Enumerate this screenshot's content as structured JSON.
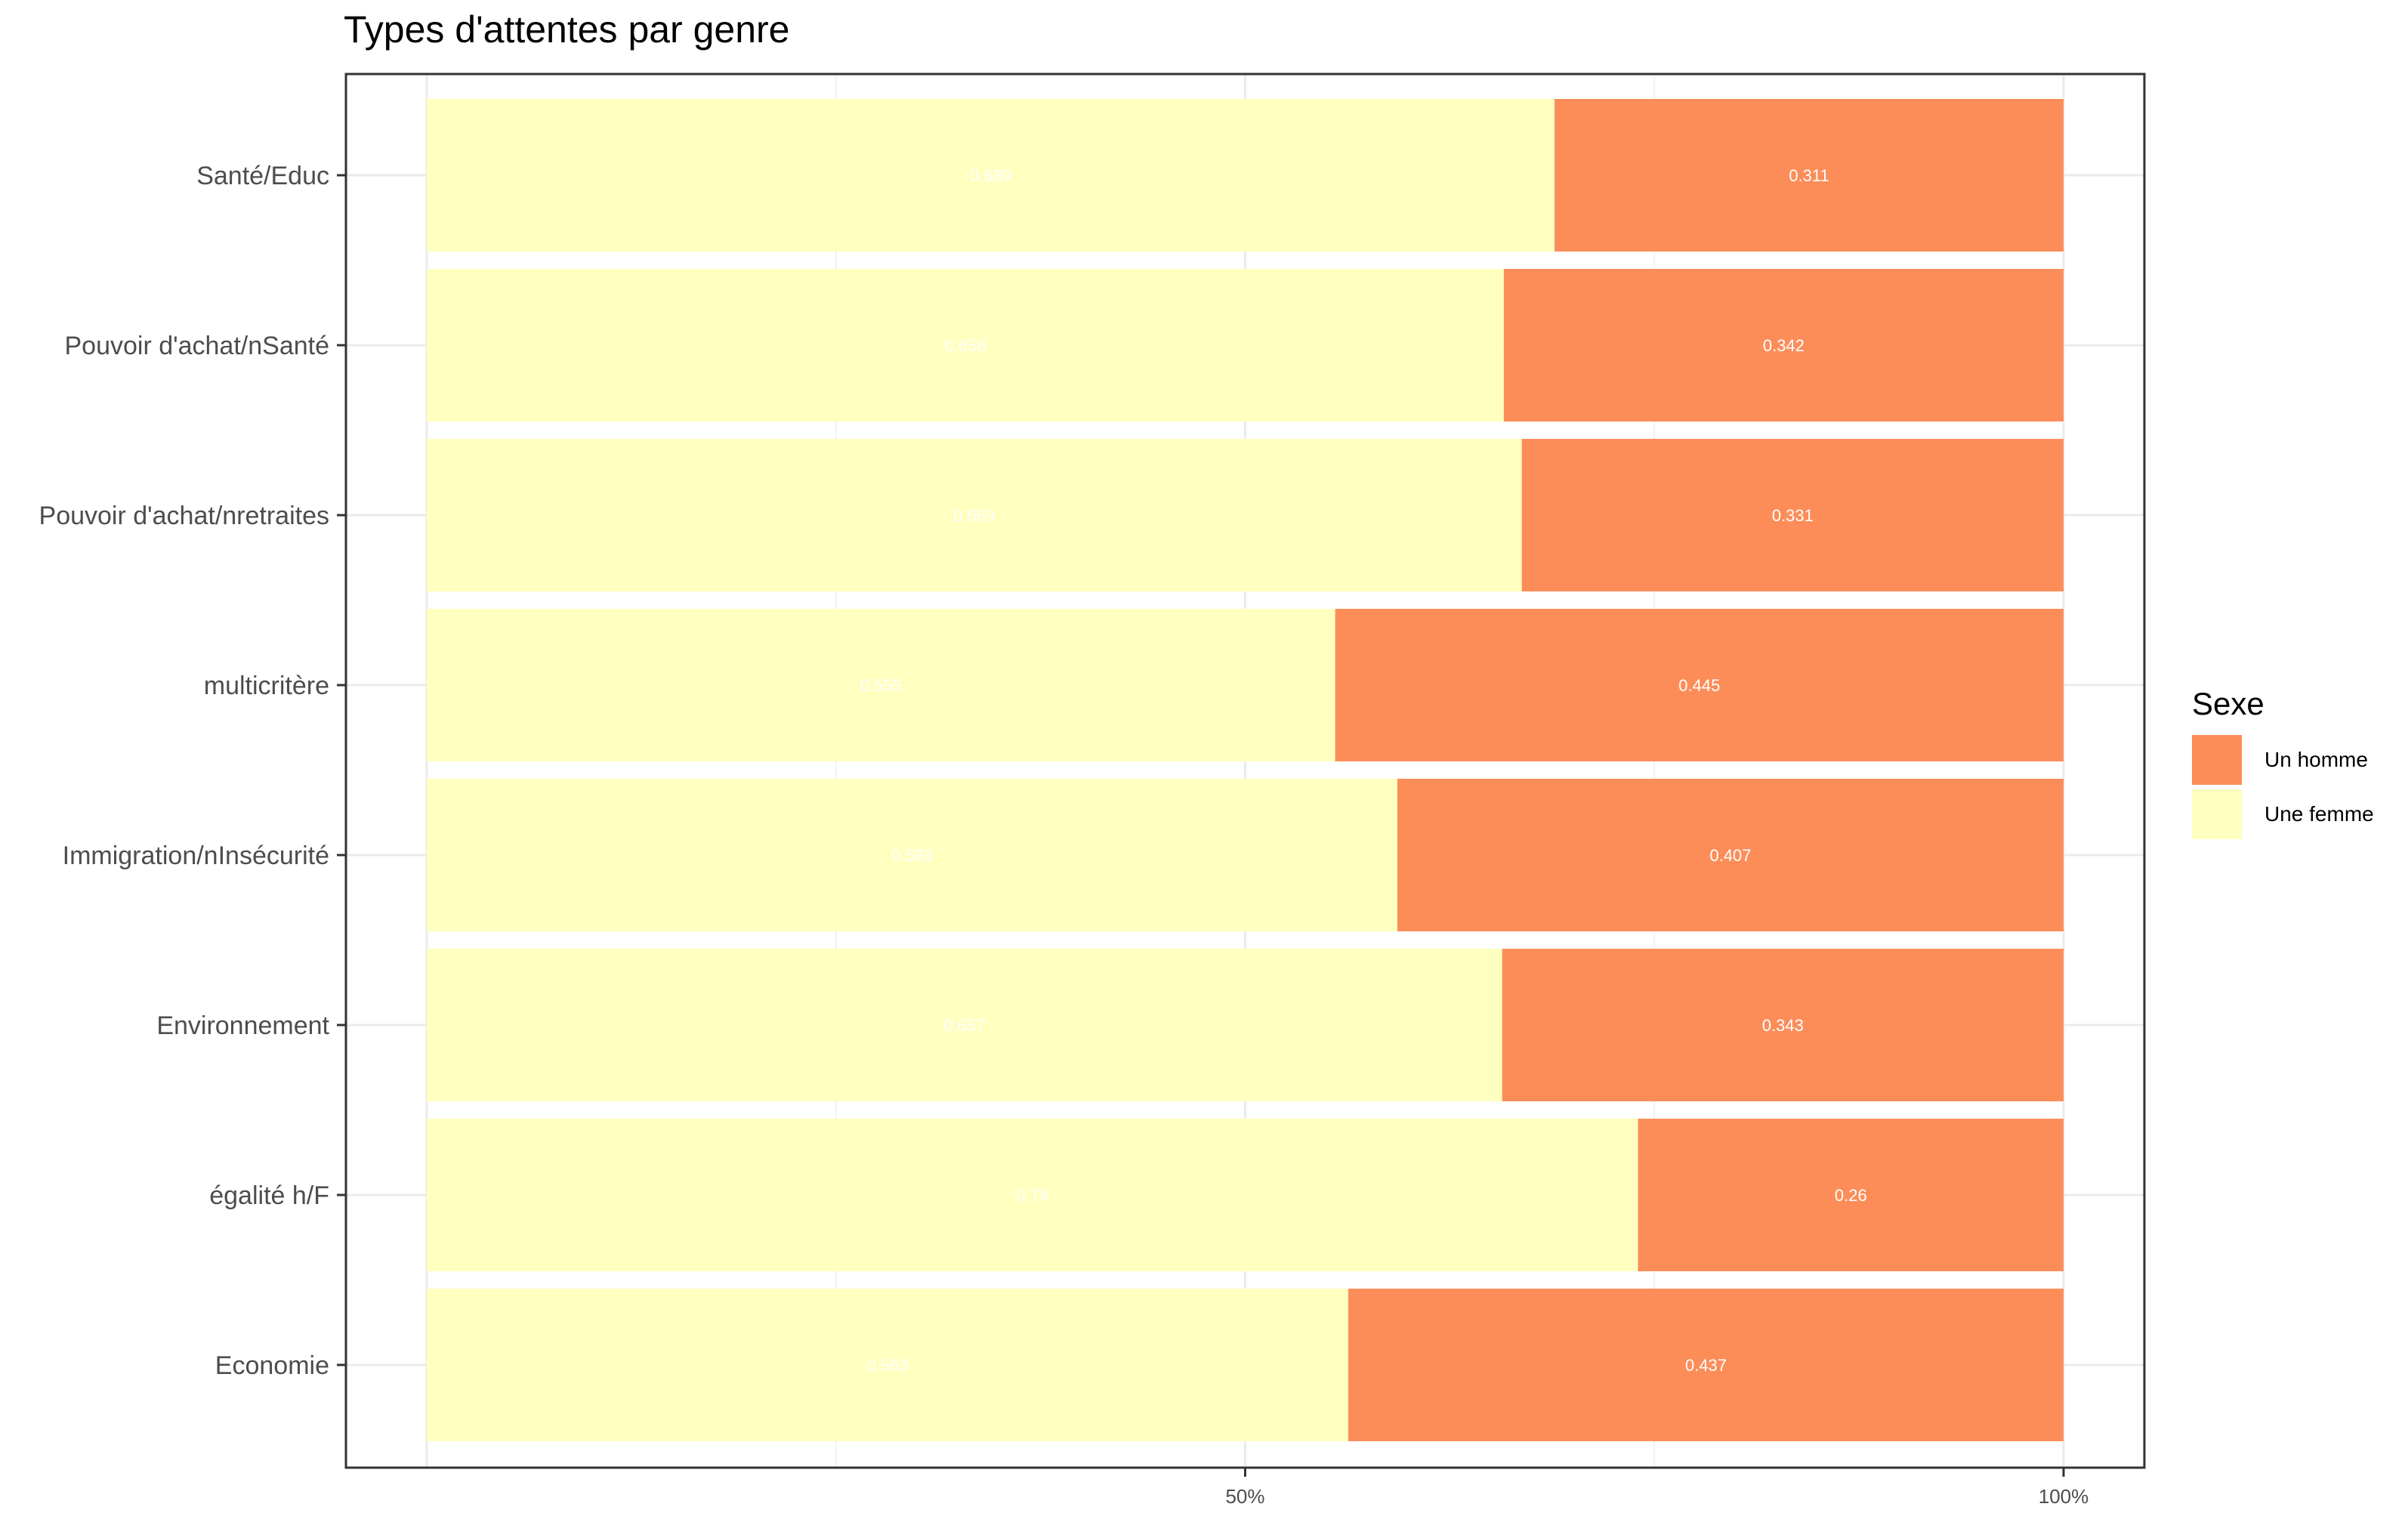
{
  "chart_data": {
    "type": "bar",
    "orientation": "horizontal",
    "stacked": true,
    "title": "Types d'attentes par genre",
    "categories": [
      "Santé/Educ",
      "Pouvoir d'achat/nSanté",
      "Pouvoir d'achat/nretraites",
      "multicritère",
      "Immigration/nInsécurité",
      "Environnement",
      "égalité h/F",
      "Economie"
    ],
    "series": [
      {
        "name": "Une femme",
        "color": "#ffffc0",
        "values": [
          0.689,
          0.658,
          0.669,
          0.555,
          0.593,
          0.657,
          0.74,
          0.563
        ]
      },
      {
        "name": "Un homme",
        "color": "#fc8d59",
        "values": [
          0.311,
          0.342,
          0.331,
          0.445,
          0.407,
          0.343,
          0.26,
          0.437
        ]
      }
    ],
    "x_ticks": [
      "50%",
      "100%"
    ],
    "xlim": [
      0,
      1
    ],
    "grid": true,
    "legend": {
      "title": "Sexe",
      "position": "right",
      "entries": [
        "Un homme",
        "Une femme"
      ]
    }
  }
}
